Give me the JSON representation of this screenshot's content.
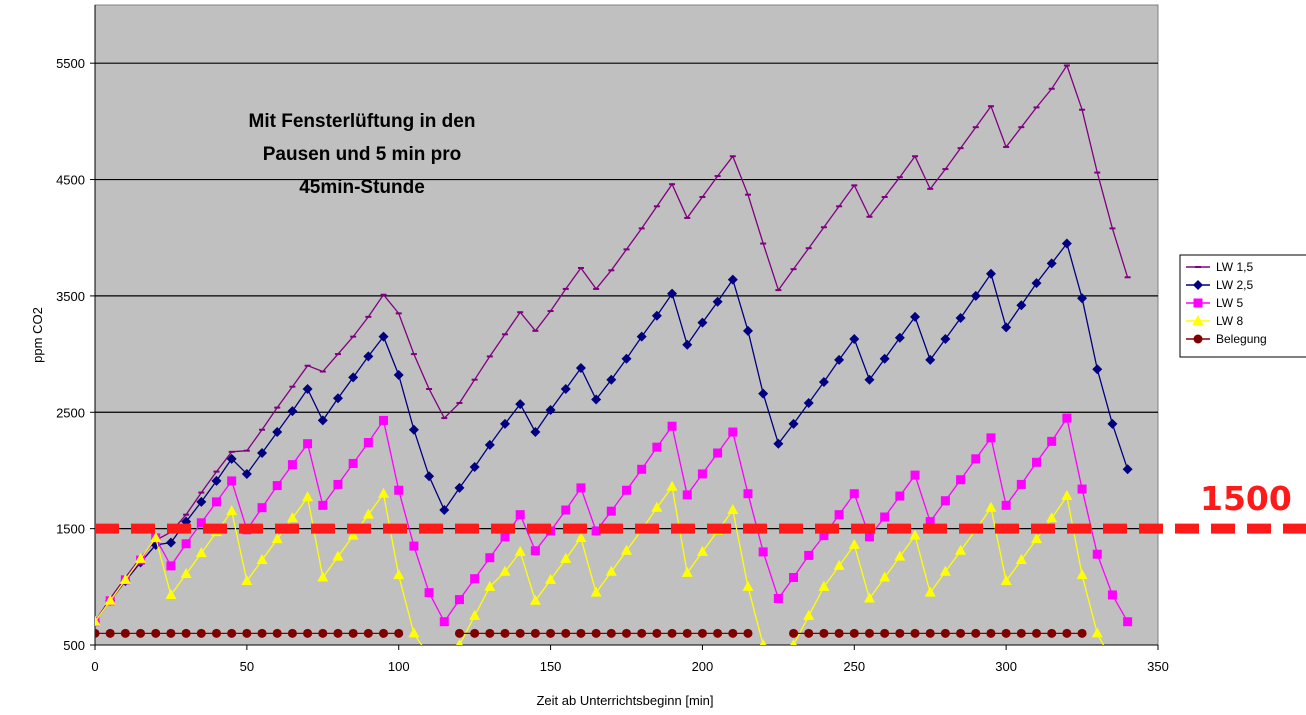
{
  "chart_data": {
    "type": "line",
    "title": "",
    "xlabel": "Zeit ab Unterrichtsbeginn [min]",
    "ylabel": "ppm CO2",
    "xlim": [
      0,
      350
    ],
    "ylim": [
      500,
      6000
    ],
    "xticks": [
      0,
      50,
      100,
      150,
      200,
      250,
      300,
      350
    ],
    "yticks": [
      500,
      1500,
      2500,
      3500,
      4500,
      5500
    ],
    "xtick_labels": [
      "0",
      "50",
      "100",
      "150",
      "200",
      "250",
      "300",
      "350"
    ],
    "ytick_labels": [
      "500",
      "1500",
      "2500",
      "3500",
      "4500",
      "5500"
    ],
    "grid": "horizontal",
    "legend_position": "right",
    "annotation": [
      "Mit Fensterlüftung in den",
      "Pausen und 5 min pro",
      "45min-Stunde"
    ],
    "threshold": {
      "value": 1500,
      "label": "1500",
      "color": "#ff1a1a"
    },
    "plot_background": "#c0c0c0",
    "series": [
      {
        "name": "LW 1,5",
        "color": "#800080",
        "marker": "dash",
        "points": [
          [
            0,
            700
          ],
          [
            5,
            900
          ],
          [
            10,
            1080
          ],
          [
            15,
            1250
          ],
          [
            20,
            1400
          ],
          [
            25,
            1470
          ],
          [
            30,
            1620
          ],
          [
            35,
            1810
          ],
          [
            40,
            1990
          ],
          [
            45,
            2160
          ],
          [
            50,
            2170
          ],
          [
            55,
            2350
          ],
          [
            60,
            2540
          ],
          [
            65,
            2720
          ],
          [
            70,
            2900
          ],
          [
            75,
            2850
          ],
          [
            80,
            3000
          ],
          [
            85,
            3150
          ],
          [
            90,
            3320
          ],
          [
            95,
            3510
          ],
          [
            100,
            3350
          ],
          [
            105,
            3000
          ],
          [
            110,
            2700
          ],
          [
            115,
            2450
          ],
          [
            120,
            2580
          ],
          [
            125,
            2780
          ],
          [
            130,
            2980
          ],
          [
            135,
            3170
          ],
          [
            140,
            3360
          ],
          [
            145,
            3200
          ],
          [
            150,
            3370
          ],
          [
            155,
            3560
          ],
          [
            160,
            3740
          ],
          [
            165,
            3560
          ],
          [
            170,
            3720
          ],
          [
            175,
            3900
          ],
          [
            180,
            4080
          ],
          [
            185,
            4270
          ],
          [
            190,
            4460
          ],
          [
            195,
            4170
          ],
          [
            200,
            4350
          ],
          [
            205,
            4530
          ],
          [
            210,
            4700
          ],
          [
            215,
            4370
          ],
          [
            220,
            3950
          ],
          [
            225,
            3550
          ],
          [
            230,
            3730
          ],
          [
            235,
            3910
          ],
          [
            240,
            4090
          ],
          [
            245,
            4270
          ],
          [
            250,
            4450
          ],
          [
            255,
            4180
          ],
          [
            260,
            4350
          ],
          [
            265,
            4520
          ],
          [
            270,
            4700
          ],
          [
            275,
            4420
          ],
          [
            280,
            4590
          ],
          [
            285,
            4770
          ],
          [
            290,
            4950
          ],
          [
            295,
            5130
          ],
          [
            300,
            4780
          ],
          [
            305,
            4950
          ],
          [
            310,
            5120
          ],
          [
            315,
            5280
          ],
          [
            320,
            5480
          ],
          [
            325,
            5100
          ],
          [
            330,
            4560
          ],
          [
            335,
            4080
          ],
          [
            340,
            3660
          ]
        ]
      },
      {
        "name": "LW 2,5",
        "color": "#000080",
        "marker": "diamond",
        "points": [
          [
            0,
            700
          ],
          [
            5,
            880
          ],
          [
            10,
            1050
          ],
          [
            15,
            1210
          ],
          [
            20,
            1360
          ],
          [
            25,
            1380
          ],
          [
            30,
            1560
          ],
          [
            35,
            1730
          ],
          [
            40,
            1910
          ],
          [
            45,
            2100
          ],
          [
            50,
            1970
          ],
          [
            55,
            2150
          ],
          [
            60,
            2330
          ],
          [
            65,
            2510
          ],
          [
            70,
            2700
          ],
          [
            75,
            2430
          ],
          [
            80,
            2620
          ],
          [
            85,
            2800
          ],
          [
            90,
            2980
          ],
          [
            95,
            3150
          ],
          [
            100,
            2820
          ],
          [
            105,
            2350
          ],
          [
            110,
            1950
          ],
          [
            115,
            1660
          ],
          [
            120,
            1850
          ],
          [
            125,
            2030
          ],
          [
            130,
            2220
          ],
          [
            135,
            2400
          ],
          [
            140,
            2570
          ],
          [
            145,
            2330
          ],
          [
            150,
            2520
          ],
          [
            155,
            2700
          ],
          [
            160,
            2880
          ],
          [
            165,
            2610
          ],
          [
            170,
            2780
          ],
          [
            175,
            2960
          ],
          [
            180,
            3150
          ],
          [
            185,
            3330
          ],
          [
            190,
            3520
          ],
          [
            195,
            3080
          ],
          [
            200,
            3270
          ],
          [
            205,
            3450
          ],
          [
            210,
            3640
          ],
          [
            215,
            3200
          ],
          [
            220,
            2660
          ],
          [
            225,
            2230
          ],
          [
            230,
            2400
          ],
          [
            235,
            2580
          ],
          [
            240,
            2760
          ],
          [
            245,
            2950
          ],
          [
            250,
            3130
          ],
          [
            255,
            2780
          ],
          [
            260,
            2960
          ],
          [
            265,
            3140
          ],
          [
            270,
            3320
          ],
          [
            275,
            2950
          ],
          [
            280,
            3130
          ],
          [
            285,
            3310
          ],
          [
            290,
            3500
          ],
          [
            295,
            3690
          ],
          [
            300,
            3230
          ],
          [
            305,
            3420
          ],
          [
            310,
            3610
          ],
          [
            315,
            3780
          ],
          [
            320,
            3950
          ],
          [
            325,
            3480
          ],
          [
            330,
            2870
          ],
          [
            335,
            2400
          ],
          [
            340,
            2010
          ]
        ]
      },
      {
        "name": "LW 5",
        "color": "#ff00ff",
        "marker": "square",
        "points": [
          [
            0,
            700
          ],
          [
            5,
            880
          ],
          [
            10,
            1060
          ],
          [
            15,
            1230
          ],
          [
            20,
            1420
          ],
          [
            25,
            1180
          ],
          [
            30,
            1370
          ],
          [
            35,
            1550
          ],
          [
            40,
            1730
          ],
          [
            45,
            1910
          ],
          [
            50,
            1490
          ],
          [
            55,
            1680
          ],
          [
            60,
            1870
          ],
          [
            65,
            2050
          ],
          [
            70,
            2230
          ],
          [
            75,
            1700
          ],
          [
            80,
            1880
          ],
          [
            85,
            2060
          ],
          [
            90,
            2240
          ],
          [
            95,
            2430
          ],
          [
            100,
            1830
          ],
          [
            105,
            1350
          ],
          [
            110,
            950
          ],
          [
            115,
            700
          ],
          [
            120,
            890
          ],
          [
            125,
            1070
          ],
          [
            130,
            1250
          ],
          [
            135,
            1430
          ],
          [
            140,
            1620
          ],
          [
            145,
            1310
          ],
          [
            150,
            1480
          ],
          [
            155,
            1660
          ],
          [
            160,
            1850
          ],
          [
            165,
            1480
          ],
          [
            170,
            1650
          ],
          [
            175,
            1830
          ],
          [
            180,
            2010
          ],
          [
            185,
            2200
          ],
          [
            190,
            2380
          ],
          [
            195,
            1790
          ],
          [
            200,
            1970
          ],
          [
            205,
            2150
          ],
          [
            210,
            2330
          ],
          [
            215,
            1800
          ],
          [
            220,
            1300
          ],
          [
            225,
            900
          ],
          [
            230,
            1080
          ],
          [
            235,
            1270
          ],
          [
            240,
            1440
          ],
          [
            245,
            1620
          ],
          [
            250,
            1800
          ],
          [
            255,
            1430
          ],
          [
            260,
            1600
          ],
          [
            265,
            1780
          ],
          [
            270,
            1960
          ],
          [
            275,
            1560
          ],
          [
            280,
            1740
          ],
          [
            285,
            1920
          ],
          [
            290,
            2100
          ],
          [
            295,
            2280
          ],
          [
            300,
            1700
          ],
          [
            305,
            1880
          ],
          [
            310,
            2070
          ],
          [
            315,
            2250
          ],
          [
            320,
            2450
          ],
          [
            325,
            1840
          ],
          [
            330,
            1280
          ],
          [
            335,
            930
          ],
          [
            340,
            700
          ]
        ]
      },
      {
        "name": "LW 8",
        "color": "#ffff00",
        "marker": "triangle",
        "points": [
          [
            0,
            700
          ],
          [
            5,
            880
          ],
          [
            10,
            1060
          ],
          [
            15,
            1240
          ],
          [
            20,
            1420
          ],
          [
            25,
            930
          ],
          [
            30,
            1110
          ],
          [
            35,
            1290
          ],
          [
            40,
            1470
          ],
          [
            45,
            1650
          ],
          [
            50,
            1050
          ],
          [
            55,
            1230
          ],
          [
            60,
            1410
          ],
          [
            65,
            1590
          ],
          [
            70,
            1770
          ],
          [
            75,
            1080
          ],
          [
            80,
            1260
          ],
          [
            85,
            1440
          ],
          [
            90,
            1620
          ],
          [
            95,
            1800
          ],
          [
            100,
            1100
          ],
          [
            105,
            600
          ],
          [
            110,
            400
          ],
          [
            115,
            250
          ],
          [
            120,
            500
          ],
          [
            125,
            750
          ],
          [
            130,
            1000
          ],
          [
            135,
            1130
          ],
          [
            140,
            1300
          ],
          [
            145,
            880
          ],
          [
            150,
            1060
          ],
          [
            155,
            1240
          ],
          [
            160,
            1420
          ],
          [
            165,
            950
          ],
          [
            170,
            1130
          ],
          [
            175,
            1310
          ],
          [
            180,
            1490
          ],
          [
            185,
            1680
          ],
          [
            190,
            1860
          ],
          [
            195,
            1120
          ],
          [
            200,
            1300
          ],
          [
            205,
            1480
          ],
          [
            210,
            1660
          ],
          [
            215,
            1000
          ],
          [
            220,
            500
          ],
          [
            225,
            250
          ],
          [
            230,
            500
          ],
          [
            235,
            750
          ],
          [
            240,
            1000
          ],
          [
            245,
            1180
          ],
          [
            250,
            1360
          ],
          [
            255,
            900
          ],
          [
            260,
            1080
          ],
          [
            265,
            1260
          ],
          [
            270,
            1440
          ],
          [
            275,
            950
          ],
          [
            280,
            1130
          ],
          [
            285,
            1310
          ],
          [
            290,
            1490
          ],
          [
            295,
            1680
          ],
          [
            300,
            1050
          ],
          [
            305,
            1230
          ],
          [
            310,
            1410
          ],
          [
            315,
            1590
          ],
          [
            320,
            1780
          ],
          [
            325,
            1100
          ],
          [
            330,
            600
          ],
          [
            335,
            350
          ],
          [
            340,
            150
          ]
        ]
      },
      {
        "name": "Belegung",
        "color": "#800000",
        "marker": "circle",
        "segments": [
          {
            "x": [
              0,
              5,
              10,
              15,
              20,
              25,
              30,
              35,
              40,
              45,
              50,
              55,
              60,
              65,
              70,
              75,
              80,
              85,
              90,
              95,
              100
            ],
            "y": 600
          },
          {
            "x": [
              120,
              125,
              130,
              135,
              140,
              145,
              150,
              155,
              160,
              165,
              170,
              175,
              180,
              185,
              190,
              195,
              200,
              205,
              210,
              215
            ],
            "y": 600
          },
          {
            "x": [
              230,
              235,
              240,
              245,
              250,
              255,
              260,
              265,
              270,
              275,
              280,
              285,
              290,
              295,
              300,
              305,
              310,
              315,
              320,
              325
            ],
            "y": 600
          }
        ]
      }
    ]
  }
}
